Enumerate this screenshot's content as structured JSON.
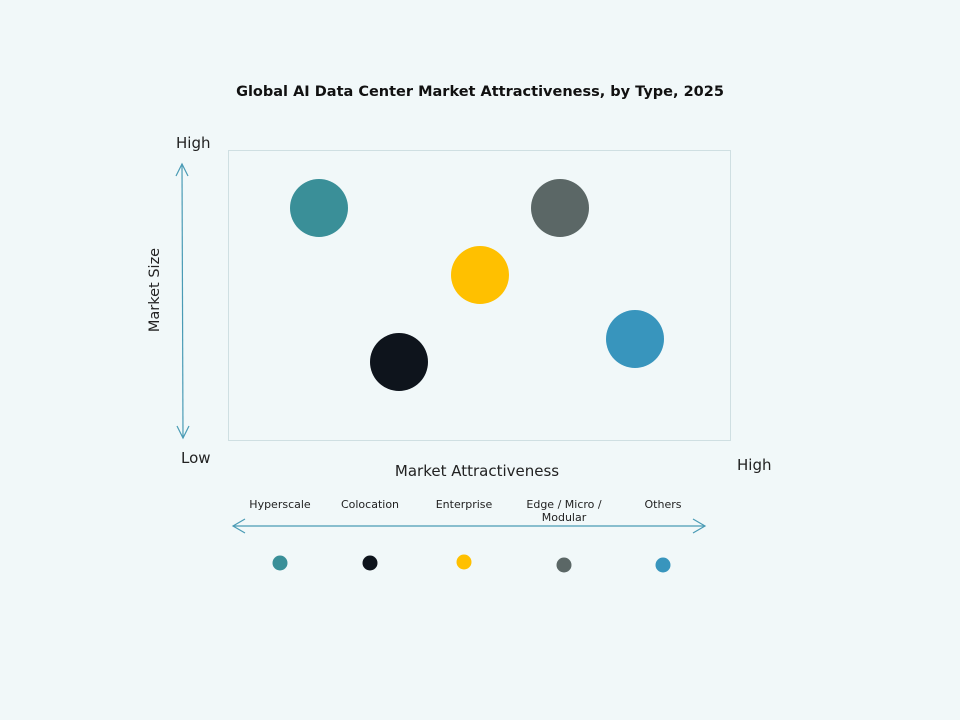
{
  "chart_data": {
    "type": "scatter",
    "subtype": "bubble-matrix",
    "title": "Global AI Data Center Market Attractiveness,  by Type, 2025",
    "xlabel": "Market Attractiveness",
    "ylabel": "Market Size",
    "x_axis": {
      "low": "Low",
      "high": "High"
    },
    "y_axis": {
      "low": "Low",
      "high": "High"
    },
    "grid": false,
    "legend_position": "bottom",
    "xlim": [
      0,
      100
    ],
    "ylim": [
      0,
      100
    ],
    "series": [
      {
        "name": "Hyperscale",
        "x": 18,
        "y": 80,
        "color": "#3a8f98"
      },
      {
        "name": "Colocation",
        "x": 34,
        "y": 27,
        "color": "#0e141c"
      },
      {
        "name": "Enterprise",
        "x": 50,
        "y": 57,
        "color": "#ffc000"
      },
      {
        "name": "Edge / Micro / Modular",
        "x": 66,
        "y": 80,
        "color": "#5b6766"
      },
      {
        "name": "Others",
        "x": 81,
        "y": 35,
        "color": "#3895bd"
      }
    ]
  },
  "labels": {
    "title": "Global AI Data Center Market Attractiveness,  by Type, 2025",
    "y_high": "High",
    "y_low": "Low",
    "x_high": "High",
    "ylabel": "Market Size",
    "xlabel": "Market Attractiveness"
  },
  "legend": [
    {
      "label": "Hyperscale",
      "color": "#3a8f98"
    },
    {
      "label": "Colocation",
      "color": "#0e141c"
    },
    {
      "label": "Enterprise",
      "color": "#ffc000"
    },
    {
      "label": "Edge / Micro / Modular",
      "color": "#5b6766"
    },
    {
      "label": "Others",
      "color": "#3895bd"
    }
  ],
  "colors": {
    "background": "#f1f8f9",
    "axis_arrow": "#4a9bb5",
    "plot_border": "#cfdfe2"
  }
}
